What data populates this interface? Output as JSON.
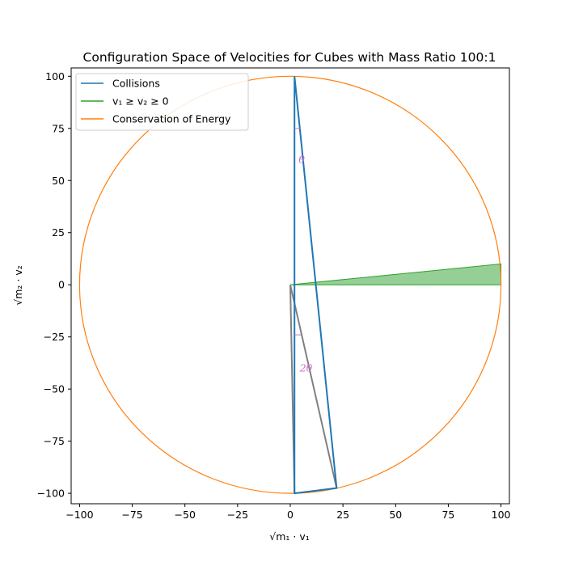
{
  "chart_data": {
    "type": "line",
    "title": "Configuration Space of Velocities for Cubes with Mass Ratio 100:1",
    "xlabel": "√m₁ · v₁",
    "ylabel": "√m₂ · v₂",
    "xlim": [
      -104,
      104
    ],
    "ylim": [
      -105,
      104
    ],
    "x_ticks": [
      -100,
      -75,
      -50,
      -25,
      0,
      25,
      50,
      75,
      100
    ],
    "y_ticks": [
      -100,
      -75,
      -50,
      -25,
      0,
      25,
      50,
      75,
      100
    ],
    "legend": {
      "placement": "top-left",
      "entries": [
        {
          "label": "Collisions",
          "color": "#1f77b4"
        },
        {
          "label": "v₁ ≥ v₂ ≥ 0",
          "color": "#2ca02c"
        },
        {
          "label": "Conservation of Energy",
          "color": "#ff7f0e"
        }
      ]
    },
    "series": [
      {
        "name": "Collisions",
        "color": "#1f77b4",
        "points": [
          [
            2,
            100
          ],
          [
            2,
            -100
          ],
          [
            22,
            -97.5
          ],
          [
            2,
            100
          ]
        ]
      },
      {
        "name": "Conservation of Energy",
        "color": "#ff7f0e",
        "circle": {
          "cx": 0,
          "cy": 0,
          "r": 100
        }
      }
    ],
    "filled_region": {
      "name": "v₁ ≥ v₂ ≥ 0",
      "color": "#2ca02c",
      "points": [
        [
          0,
          0
        ],
        [
          100,
          0
        ],
        [
          100,
          10
        ]
      ]
    },
    "gray_lines": {
      "color": "#808080",
      "points": [
        [
          2,
          -100
        ],
        [
          0,
          0
        ],
        [
          22,
          -97.5
        ]
      ]
    },
    "annotations": [
      {
        "text": "θ",
        "x": 4,
        "y": 60,
        "arc": {
          "x1": 2,
          "y1": 75,
          "x2": 5,
          "y2": 75
        }
      },
      {
        "text": "2θ",
        "x": 4.5,
        "y": -40,
        "arc": {
          "x1": 2,
          "y1": -24,
          "x2": 5,
          "y2": -24
        }
      }
    ]
  }
}
